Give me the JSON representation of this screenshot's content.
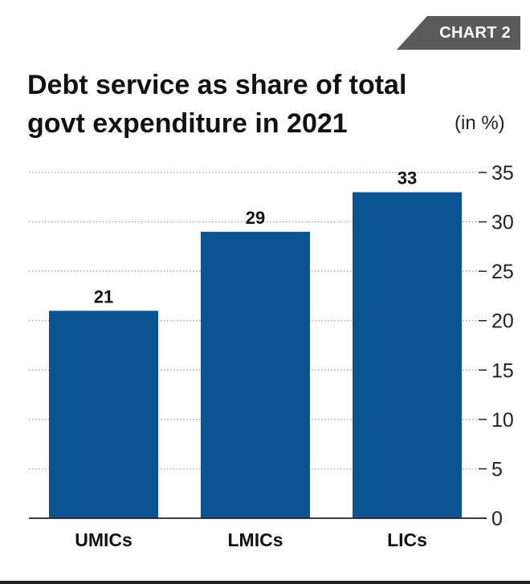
{
  "tag": {
    "label": "CHART 2"
  },
  "header": {
    "title_line1": "Debt service as share of total",
    "title_line2": "govt expenditure in 2021",
    "unit": "(in %)"
  },
  "colors": {
    "bar": "#0a5591",
    "tag_bg": "#5a5a5a",
    "grid": "#9a9a9a",
    "text": "#111111"
  },
  "chart_data": {
    "type": "bar",
    "categories": [
      "UMICs",
      "LMICs",
      "LICs"
    ],
    "values": [
      21,
      29,
      33
    ],
    "data_labels": [
      "21",
      "29",
      "33"
    ],
    "title": "Debt service as share of total govt expenditure in 2021",
    "xlabel": "",
    "ylabel": "",
    "unit": "(in %)",
    "ylim": [
      0,
      35
    ],
    "yticks": [
      0,
      5,
      10,
      15,
      20,
      25,
      30,
      35
    ],
    "y_axis_position": "right",
    "grid": "dotted horizontal"
  }
}
